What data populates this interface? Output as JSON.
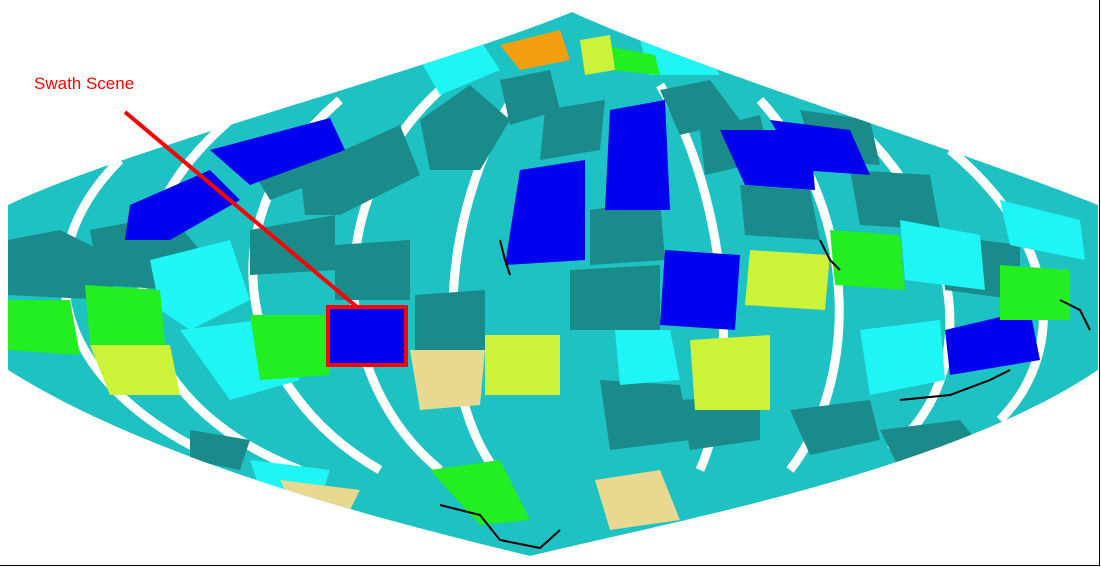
{
  "annotation": {
    "label": "Swath Scene"
  },
  "colors": {
    "highlight": "#ff0000",
    "swath_fill": "#0000ee",
    "teal": "#1a8a8a",
    "medium_turquoise": "#1ec2c2",
    "cyan": "#1ff5f5",
    "blue": "#0000ee",
    "green": "#22ee22",
    "yellow_green": "#ccf23a",
    "tan": "#e8d890",
    "orange": "#f2a010",
    "background_land": "#f4f4f4",
    "grid": "#000000"
  }
}
